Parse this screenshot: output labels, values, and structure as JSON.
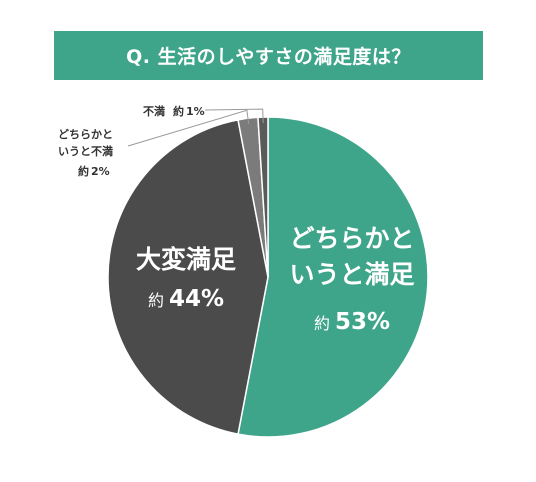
{
  "chart_data": {
    "type": "pie",
    "title": "Q. 生活のしやすさの満足度は？",
    "unit": "%",
    "slices": [
      {
        "label_lines": [
          "どちらかと",
          "いうと満足"
        ],
        "prefix": "約",
        "value": 53,
        "color": "#3fa58a"
      },
      {
        "label_lines": [
          "大変満足"
        ],
        "prefix": "約",
        "value": 44,
        "color": "#4b4b4b"
      },
      {
        "label_lines": [
          "どちらかと",
          "いうと不満"
        ],
        "prefix": "約",
        "value": 2,
        "color": "#7b7b7b"
      },
      {
        "label_lines": [
          "不満"
        ],
        "prefix": "約",
        "value": 1,
        "color": "#5a5a5a"
      }
    ]
  }
}
